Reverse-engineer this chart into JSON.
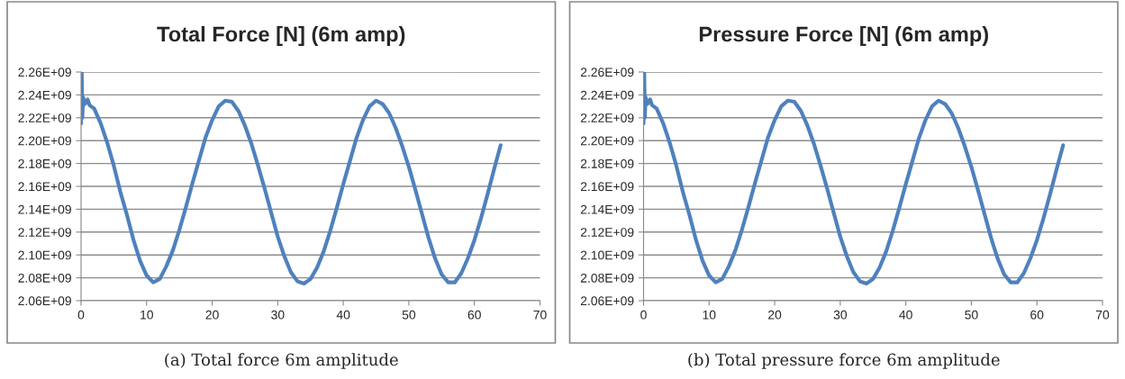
{
  "chart_data": [
    {
      "type": "line",
      "title": "Total Force [N] (6m amp)",
      "annotations": [
        "(a) Total force 6m amplitude"
      ],
      "grid": "y",
      "marker": "none",
      "line_style": "solid",
      "xlim": [
        0,
        70
      ],
      "xticks": [
        0,
        10,
        20,
        30,
        40,
        50,
        60,
        70
      ],
      "ylim": [
        2060000000.0,
        2260000000.0
      ],
      "yticks": [
        {
          "value": 2060000000.0,
          "label": "2.06E+09"
        },
        {
          "value": 2080000000.0,
          "label": "2.08E+09"
        },
        {
          "value": 2100000000.0,
          "label": "2.10E+09"
        },
        {
          "value": 2120000000.0,
          "label": "2.12E+09"
        },
        {
          "value": 2140000000.0,
          "label": "2.14E+09"
        },
        {
          "value": 2160000000.0,
          "label": "2.16E+09"
        },
        {
          "value": 2180000000.0,
          "label": "2.18E+09"
        },
        {
          "value": 2200000000.0,
          "label": "2.20E+09"
        },
        {
          "value": 2220000000.0,
          "label": "2.22E+09"
        },
        {
          "value": 2240000000.0,
          "label": "2.24E+09"
        },
        {
          "value": 2260000000.0,
          "label": "2.26E+09"
        }
      ],
      "x": [
        0,
        0.1,
        0.2,
        0.3,
        0.6,
        1,
        1.3,
        2,
        3,
        4,
        5,
        6,
        7,
        8,
        9,
        10,
        11,
        12,
        13,
        14,
        15,
        16,
        17,
        18,
        19,
        20,
        21,
        22,
        23,
        24,
        25,
        26,
        27,
        28,
        29,
        30,
        31,
        32,
        33,
        34,
        35,
        36,
        37,
        38,
        39,
        40,
        41,
        42,
        43,
        44,
        45,
        46,
        47,
        48,
        49,
        50,
        51,
        52,
        53,
        54,
        55,
        56,
        57,
        58,
        59,
        60,
        61,
        62,
        63,
        64
      ],
      "series": [
        {
          "color": "#4f81bd",
          "values": [
            2215000000.0,
            2260000000.0,
            2220000000.0,
            2238000000.0,
            2232000000.0,
            2236000000.0,
            2231000000.0,
            2228000000.0,
            2215000000.0,
            2198000000.0,
            2178000000.0,
            2155000000.0,
            2135000000.0,
            2113000000.0,
            2095000000.0,
            2082000000.0,
            2076000000.0,
            2079000000.0,
            2090000000.0,
            2104000000.0,
            2122000000.0,
            2142000000.0,
            2163000000.0,
            2183000000.0,
            2203000000.0,
            2218000000.0,
            2230000000.0,
            2235000000.0,
            2234000000.0,
            2226000000.0,
            2213000000.0,
            2197000000.0,
            2178000000.0,
            2158000000.0,
            2137000000.0,
            2116000000.0,
            2099000000.0,
            2085000000.0,
            2077000000.0,
            2075000000.0,
            2079000000.0,
            2089000000.0,
            2103000000.0,
            2121000000.0,
            2141000000.0,
            2162000000.0,
            2182000000.0,
            2202000000.0,
            2218000000.0,
            2230000000.0,
            2235000000.0,
            2232000000.0,
            2224000000.0,
            2211000000.0,
            2195000000.0,
            2177000000.0,
            2157000000.0,
            2136000000.0,
            2115000000.0,
            2097000000.0,
            2083000000.0,
            2076000000.0,
            2076000000.0,
            2084000000.0,
            2097000000.0,
            2113000000.0,
            2132000000.0,
            2153000000.0,
            2175000000.0,
            2196000000.0
          ]
        }
      ]
    },
    {
      "type": "line",
      "title": "Pressure Force [N] (6m amp)",
      "annotations": [
        "(b) Total pressure force 6m amplitude"
      ],
      "grid": "y",
      "marker": "none",
      "line_style": "solid",
      "xlim": [
        0,
        70
      ],
      "xticks": [
        0,
        10,
        20,
        30,
        40,
        50,
        60,
        70
      ],
      "ylim": [
        2060000000.0,
        2260000000.0
      ],
      "yticks": [
        {
          "value": 2060000000.0,
          "label": "2.06E+09"
        },
        {
          "value": 2080000000.0,
          "label": "2.08E+09"
        },
        {
          "value": 2100000000.0,
          "label": "2.10E+09"
        },
        {
          "value": 2120000000.0,
          "label": "2.12E+09"
        },
        {
          "value": 2140000000.0,
          "label": "2.14E+09"
        },
        {
          "value": 2160000000.0,
          "label": "2.16E+09"
        },
        {
          "value": 2180000000.0,
          "label": "2.18E+09"
        },
        {
          "value": 2200000000.0,
          "label": "2.20E+09"
        },
        {
          "value": 2220000000.0,
          "label": "2.22E+09"
        },
        {
          "value": 2240000000.0,
          "label": "2.24E+09"
        },
        {
          "value": 2260000000.0,
          "label": "2.26E+09"
        }
      ],
      "x": [
        0,
        0.1,
        0.2,
        0.3,
        0.6,
        1,
        1.3,
        2,
        3,
        4,
        5,
        6,
        7,
        8,
        9,
        10,
        11,
        12,
        13,
        14,
        15,
        16,
        17,
        18,
        19,
        20,
        21,
        22,
        23,
        24,
        25,
        26,
        27,
        28,
        29,
        30,
        31,
        32,
        33,
        34,
        35,
        36,
        37,
        38,
        39,
        40,
        41,
        42,
        43,
        44,
        45,
        46,
        47,
        48,
        49,
        50,
        51,
        52,
        53,
        54,
        55,
        56,
        57,
        58,
        59,
        60,
        61,
        62,
        63,
        64
      ],
      "series": [
        {
          "color": "#4f81bd",
          "values": [
            2215000000.0,
            2260000000.0,
            2220000000.0,
            2238000000.0,
            2232000000.0,
            2236000000.0,
            2231000000.0,
            2228000000.0,
            2215000000.0,
            2198000000.0,
            2178000000.0,
            2155000000.0,
            2135000000.0,
            2113000000.0,
            2095000000.0,
            2082000000.0,
            2076000000.0,
            2079000000.0,
            2090000000.0,
            2104000000.0,
            2122000000.0,
            2142000000.0,
            2163000000.0,
            2183000000.0,
            2203000000.0,
            2218000000.0,
            2230000000.0,
            2235000000.0,
            2234000000.0,
            2226000000.0,
            2213000000.0,
            2197000000.0,
            2178000000.0,
            2158000000.0,
            2137000000.0,
            2116000000.0,
            2099000000.0,
            2085000000.0,
            2077000000.0,
            2075000000.0,
            2079000000.0,
            2089000000.0,
            2103000000.0,
            2121000000.0,
            2141000000.0,
            2162000000.0,
            2182000000.0,
            2202000000.0,
            2218000000.0,
            2230000000.0,
            2235000000.0,
            2232000000.0,
            2224000000.0,
            2211000000.0,
            2195000000.0,
            2177000000.0,
            2157000000.0,
            2136000000.0,
            2115000000.0,
            2097000000.0,
            2083000000.0,
            2076000000.0,
            2076000000.0,
            2084000000.0,
            2097000000.0,
            2113000000.0,
            2132000000.0,
            2153000000.0,
            2175000000.0,
            2196000000.0
          ]
        }
      ]
    }
  ]
}
